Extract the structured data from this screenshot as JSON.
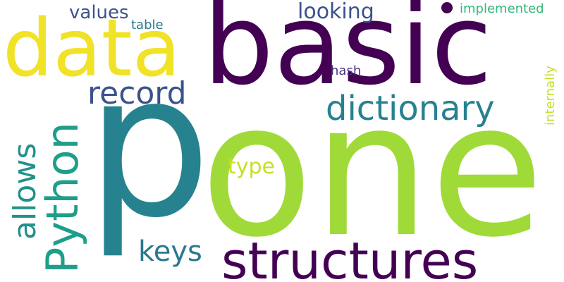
{
  "word_cloud": {
    "background_color": "#ffffff",
    "words": [
      {
        "key": "p",
        "text": "p",
        "color": "#26828e"
      },
      {
        "key": "one",
        "text": "one",
        "color": "#a0da39"
      },
      {
        "key": "basic",
        "text": "basic",
        "color": "#440154"
      },
      {
        "key": "data",
        "text": "data",
        "color": "#f0e227"
      },
      {
        "key": "python",
        "text": "Python",
        "color": "#1f9e89"
      },
      {
        "key": "structures",
        "text": "structures",
        "color": "#440154"
      },
      {
        "key": "dictionary",
        "text": "dictionary",
        "color": "#26828e"
      },
      {
        "key": "record",
        "text": "record",
        "color": "#3b528b"
      },
      {
        "key": "allows",
        "text": "allows",
        "color": "#21918c"
      },
      {
        "key": "keys",
        "text": "keys",
        "color": "#2a788e"
      },
      {
        "key": "type",
        "text": "type",
        "color": "#c8e020"
      },
      {
        "key": "looking",
        "text": "looking",
        "color": "#3b528b"
      },
      {
        "key": "values",
        "text": "values",
        "color": "#3b528b"
      },
      {
        "key": "table",
        "text": "table",
        "color": "#2a788e"
      },
      {
        "key": "hash",
        "text": "hash",
        "color": "#46327e"
      },
      {
        "key": "implemented",
        "text": "implemented",
        "color": "#35b779"
      },
      {
        "key": "internally",
        "text": "internally",
        "color": "#c8e020"
      },
      {
        "key": "dot",
        "text": "",
        "color": "#440154"
      }
    ]
  }
}
